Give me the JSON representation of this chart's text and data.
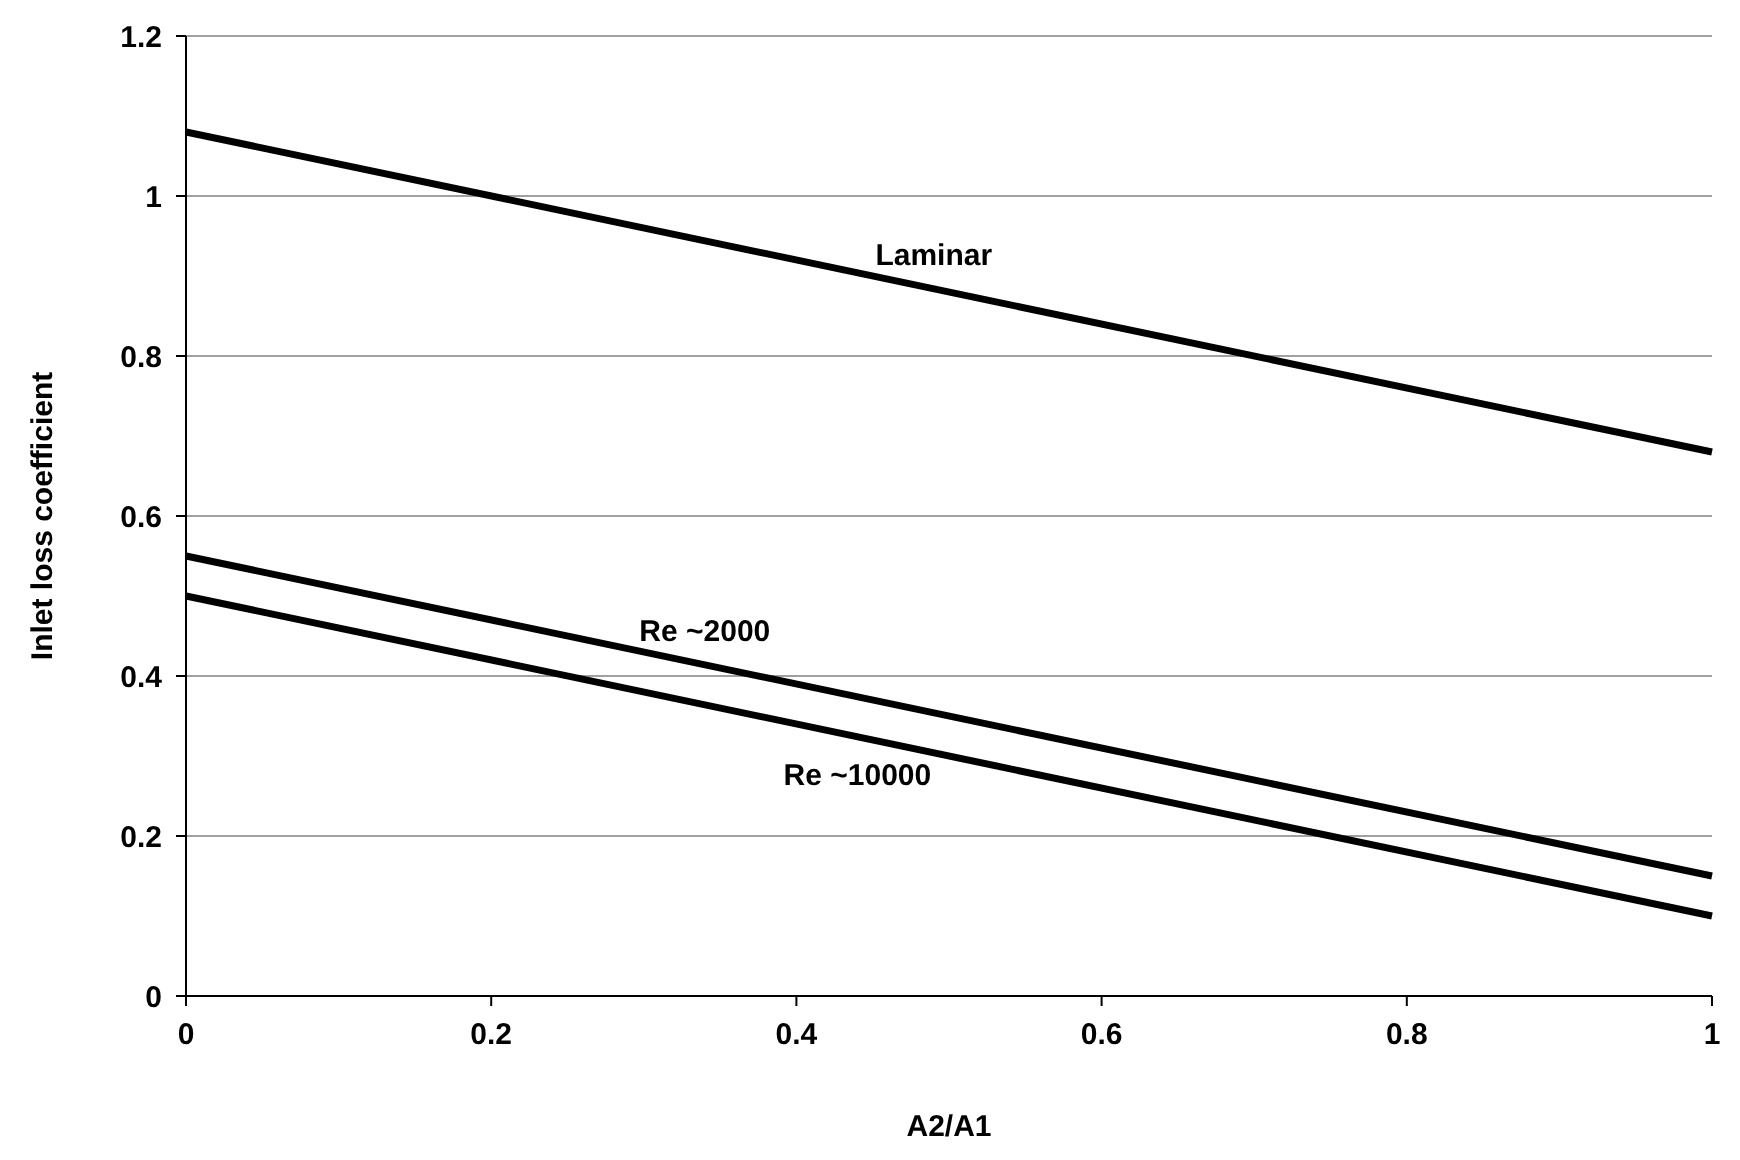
{
  "chart_data": {
    "type": "line",
    "xlabel": "A2/A1",
    "ylabel": "Inlet loss coefficient",
    "x": [
      0,
      1
    ],
    "series": [
      {
        "name": "Laminar",
        "color": "#000000",
        "values": [
          1.08,
          0.68
        ]
      },
      {
        "name": "Re ~2000",
        "color": "#000000",
        "values": [
          0.55,
          0.15
        ]
      },
      {
        "name": "Re ~10000",
        "color": "#000000",
        "values": [
          0.5,
          0.1
        ]
      }
    ],
    "xlim": [
      0,
      1
    ],
    "xticks": [
      0,
      0.2,
      0.4,
      0.6,
      0.8,
      1
    ],
    "ylim": [
      0,
      1.2
    ],
    "yticks": [
      0,
      0.2,
      0.4,
      0.6,
      0.8,
      1,
      1.2
    ],
    "grid": "y",
    "marker": "none",
    "line_style": "solid"
  }
}
